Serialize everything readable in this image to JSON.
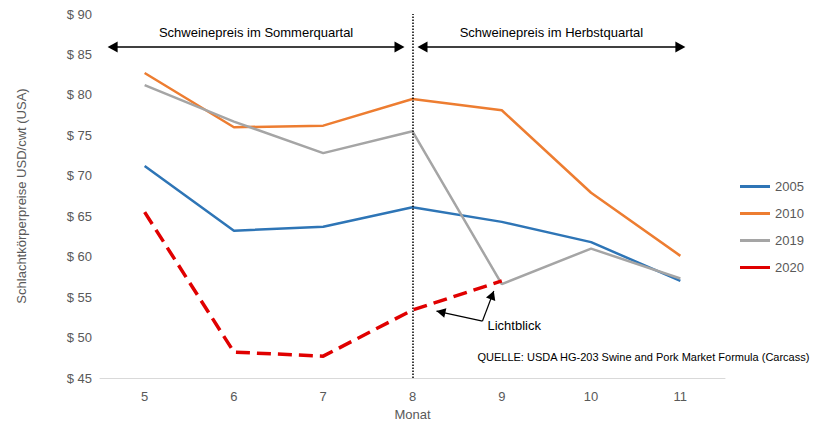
{
  "chart_data": {
    "type": "line",
    "x_label": "Monat",
    "y_label": "Schlachtkörperpreise USD/cwt (USA)",
    "categories": [
      "5",
      "6",
      "7",
      "8",
      "9",
      "10",
      "11"
    ],
    "series": [
      {
        "name": "2005",
        "color": "#2e75b6",
        "line_style": "solid",
        "marker": "none",
        "values": [
          71.2,
          63.2,
          63.7,
          66.1,
          64.3,
          61.8,
          57.0
        ]
      },
      {
        "name": "2010",
        "color": "#ed7d31",
        "line_style": "solid",
        "marker": "none",
        "values": [
          82.7,
          76.0,
          76.2,
          79.5,
          78.1,
          67.9,
          60.1
        ]
      },
      {
        "name": "2019",
        "color": "#a5a5a5",
        "line_style": "solid",
        "marker": "none",
        "values": [
          81.2,
          76.7,
          72.8,
          75.5,
          56.6,
          61.0,
          57.3
        ]
      },
      {
        "name": "2020",
        "color": "#e00000",
        "line_style": "dashed",
        "marker": "none",
        "values": [
          65.5,
          48.2,
          47.7,
          53.4,
          57.0,
          null,
          null
        ]
      }
    ],
    "ylim": [
      45,
      90
    ],
    "yticks": [
      {
        "value": 45,
        "label": "$ 45"
      },
      {
        "value": 50,
        "label": "$ 50"
      },
      {
        "value": 55,
        "label": "$ 55"
      },
      {
        "value": 60,
        "label": "$ 60"
      },
      {
        "value": 65,
        "label": "$ 65"
      },
      {
        "value": 70,
        "label": "$ 70"
      },
      {
        "value": 75,
        "label": "$ 75"
      },
      {
        "value": 80,
        "label": "$ 80"
      },
      {
        "value": 85,
        "label": "$ 85"
      },
      {
        "value": 90,
        "label": "$ 90"
      }
    ],
    "grid": false,
    "legend": "right",
    "annotations": [
      {
        "x": "8",
        "line_style": "dotted"
      },
      {
        "text": "Schweinepreis im Sommerquartal",
        "from": "5",
        "to": "8"
      },
      {
        "text": "Schweinepreis im Herbstquartal",
        "from": "8",
        "to": "11"
      },
      {
        "text": "Lichtblick",
        "series": "2020",
        "points": [
          "8",
          "9"
        ]
      },
      {
        "text": "QUELLE: USDA HG-203 Swine and Pork Market Formula (Carcass)"
      }
    ]
  }
}
